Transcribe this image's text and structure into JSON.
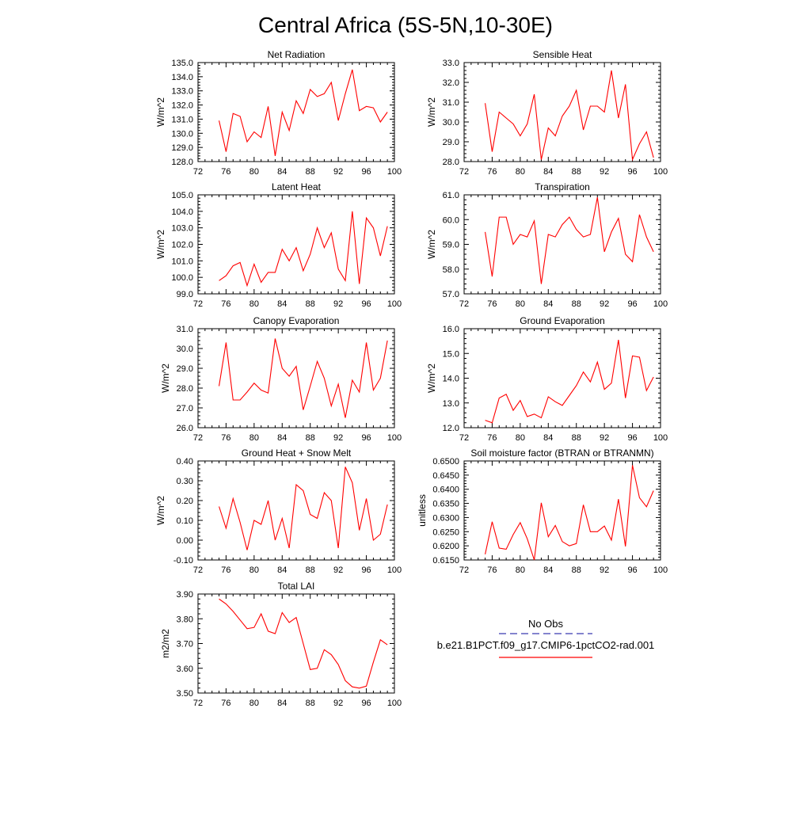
{
  "title": "Central Africa (5S-5N,10-30E)",
  "colors": {
    "series": "#ff0000",
    "obs": "#3b3bb0",
    "axis": "#000000"
  },
  "legend": {
    "items": [
      {
        "label": "No Obs",
        "style": "dashed",
        "color": "#3b3bb0"
      },
      {
        "label": "b.e21.B1PCT.f09_g17.CMIP6-1pctCO2-rad.001",
        "style": "solid",
        "color": "#ff0000"
      }
    ]
  },
  "chart_data": [
    {
      "type": "line",
      "title": "Net Radiation",
      "ylabel": "W/m^2",
      "xlim": [
        72,
        100
      ],
      "ylim": [
        128.0,
        135.0
      ],
      "decimals": 1,
      "xticks": [
        72,
        76,
        80,
        84,
        88,
        92,
        96,
        100
      ],
      "yticks": [
        128.0,
        129.0,
        130.0,
        131.0,
        132.0,
        133.0,
        134.0,
        135.0
      ],
      "series": [
        {
          "x": [
            75,
            76,
            77,
            78,
            79,
            80,
            81,
            82,
            83,
            84,
            85,
            86,
            87,
            88,
            89,
            90,
            91,
            92,
            93,
            94,
            95,
            96,
            97,
            98,
            99
          ],
          "y": [
            130.9,
            128.7,
            131.4,
            131.2,
            129.4,
            130.1,
            129.7,
            131.9,
            128.4,
            131.5,
            130.2,
            132.3,
            131.4,
            133.1,
            132.6,
            132.8,
            133.6,
            130.9,
            132.8,
            134.5,
            131.6,
            131.9,
            131.8,
            130.8,
            131.5
          ]
        }
      ]
    },
    {
      "type": "line",
      "title": "Sensible Heat",
      "ylabel": "W/m^2",
      "xlim": [
        72,
        100
      ],
      "ylim": [
        28.0,
        33.0
      ],
      "decimals": 1,
      "xticks": [
        72,
        76,
        80,
        84,
        88,
        92,
        96,
        100
      ],
      "yticks": [
        28.0,
        29.0,
        30.0,
        31.0,
        32.0,
        33.0
      ],
      "series": [
        {
          "x": [
            75,
            76,
            77,
            78,
            79,
            80,
            81,
            82,
            83,
            84,
            85,
            86,
            87,
            88,
            89,
            90,
            91,
            92,
            93,
            94,
            95,
            96,
            97,
            98,
            99
          ],
          "y": [
            30.95,
            28.5,
            30.5,
            30.2,
            29.9,
            29.3,
            29.9,
            31.4,
            28.1,
            29.7,
            29.3,
            30.3,
            30.8,
            31.6,
            29.6,
            30.8,
            30.8,
            30.5,
            32.6,
            30.2,
            31.9,
            28.1,
            28.9,
            29.5,
            28.2
          ]
        }
      ]
    },
    {
      "type": "line",
      "title": "Latent Heat",
      "ylabel": "W/m^2",
      "xlim": [
        72,
        100
      ],
      "ylim": [
        99.0,
        105.0
      ],
      "decimals": 1,
      "xticks": [
        72,
        76,
        80,
        84,
        88,
        92,
        96,
        100
      ],
      "yticks": [
        99.0,
        100.0,
        101.0,
        102.0,
        103.0,
        104.0,
        105.0
      ],
      "series": [
        {
          "x": [
            75,
            76,
            77,
            78,
            79,
            80,
            81,
            82,
            83,
            84,
            85,
            86,
            87,
            88,
            89,
            90,
            91,
            92,
            93,
            94,
            95,
            96,
            97,
            98,
            99
          ],
          "y": [
            99.8,
            100.1,
            100.7,
            100.9,
            99.5,
            100.8,
            99.7,
            100.3,
            100.3,
            101.7,
            101.0,
            101.8,
            100.4,
            101.4,
            103.0,
            101.8,
            102.7,
            100.5,
            99.8,
            104.0,
            99.6,
            103.6,
            103.0,
            101.3,
            103.1
          ]
        }
      ]
    },
    {
      "type": "line",
      "title": "Transpiration",
      "ylabel": "W/m^2",
      "xlim": [
        72,
        100
      ],
      "ylim": [
        57.0,
        61.0
      ],
      "decimals": 1,
      "xticks": [
        72,
        76,
        80,
        84,
        88,
        92,
        96,
        100
      ],
      "yticks": [
        57.0,
        58.0,
        59.0,
        60.0,
        61.0
      ],
      "series": [
        {
          "x": [
            75,
            76,
            77,
            78,
            79,
            80,
            81,
            82,
            83,
            84,
            85,
            86,
            87,
            88,
            89,
            90,
            91,
            92,
            93,
            94,
            95,
            96,
            97,
            98,
            99
          ],
          "y": [
            59.5,
            57.7,
            60.1,
            60.1,
            59.0,
            59.4,
            59.3,
            59.95,
            57.4,
            59.4,
            59.3,
            59.8,
            60.1,
            59.6,
            59.3,
            59.4,
            60.9,
            58.7,
            59.5,
            60.05,
            58.6,
            58.3,
            60.2,
            59.3,
            58.7
          ]
        }
      ]
    },
    {
      "type": "line",
      "title": "Canopy Evaporation",
      "ylabel": "W/m^2",
      "xlim": [
        72,
        100
      ],
      "ylim": [
        26.0,
        31.0
      ],
      "decimals": 1,
      "xticks": [
        72,
        76,
        80,
        84,
        88,
        92,
        96,
        100
      ],
      "yticks": [
        26.0,
        27.0,
        28.0,
        29.0,
        30.0,
        31.0
      ],
      "series": [
        {
          "x": [
            75,
            76,
            77,
            78,
            79,
            80,
            81,
            82,
            83,
            84,
            85,
            86,
            87,
            88,
            89,
            90,
            91,
            92,
            93,
            94,
            95,
            96,
            97,
            98,
            99
          ],
          "y": [
            28.1,
            30.3,
            27.4,
            27.4,
            27.8,
            28.25,
            27.9,
            27.75,
            30.5,
            29.0,
            28.6,
            29.1,
            26.9,
            28.1,
            29.35,
            28.5,
            27.1,
            28.2,
            26.5,
            28.4,
            27.8,
            30.3,
            27.9,
            28.5,
            30.4
          ]
        }
      ]
    },
    {
      "type": "line",
      "title": "Ground Evaporation",
      "ylabel": "W/m^2",
      "xlim": [
        72,
        100
      ],
      "ylim": [
        12.0,
        16.0
      ],
      "decimals": 1,
      "xticks": [
        72,
        76,
        80,
        84,
        88,
        92,
        96,
        100
      ],
      "yticks": [
        12.0,
        13.0,
        14.0,
        15.0,
        16.0
      ],
      "series": [
        {
          "x": [
            75,
            76,
            77,
            78,
            79,
            80,
            81,
            82,
            83,
            84,
            85,
            86,
            87,
            88,
            89,
            90,
            91,
            92,
            93,
            94,
            95,
            96,
            97,
            98,
            99
          ],
          "y": [
            12.3,
            12.2,
            13.2,
            13.35,
            12.7,
            13.1,
            12.45,
            12.55,
            12.4,
            13.25,
            13.05,
            12.9,
            13.3,
            13.7,
            14.25,
            13.85,
            14.65,
            13.55,
            13.8,
            15.55,
            13.2,
            14.9,
            14.85,
            13.5,
            14.05
          ]
        }
      ]
    },
    {
      "type": "line",
      "title": "Ground Heat + Snow Melt",
      "ylabel": "W/m^2",
      "xlim": [
        72,
        100
      ],
      "ylim": [
        -0.1,
        0.4
      ],
      "decimals": 2,
      "xticks": [
        72,
        76,
        80,
        84,
        88,
        92,
        96,
        100
      ],
      "yticks": [
        -0.1,
        0.0,
        0.1,
        0.2,
        0.3,
        0.4
      ],
      "series": [
        {
          "x": [
            75,
            76,
            77,
            78,
            79,
            80,
            81,
            82,
            83,
            84,
            85,
            86,
            87,
            88,
            89,
            90,
            91,
            92,
            93,
            94,
            95,
            96,
            97,
            98,
            99
          ],
          "y": [
            0.17,
            0.06,
            0.21,
            0.09,
            -0.05,
            0.1,
            0.08,
            0.2,
            0.0,
            0.11,
            -0.04,
            0.28,
            0.25,
            0.13,
            0.11,
            0.24,
            0.2,
            -0.04,
            0.37,
            0.29,
            0.05,
            0.21,
            0.0,
            0.03,
            0.18
          ]
        }
      ]
    },
    {
      "type": "line",
      "title": "Soil moisture factor (BTRAN or BTRANMN)",
      "ylabel": "unitless",
      "xlim": [
        72,
        100
      ],
      "ylim": [
        0.615,
        0.65
      ],
      "decimals": 4,
      "xticks": [
        72,
        76,
        80,
        84,
        88,
        92,
        96,
        100
      ],
      "yticks": [
        0.615,
        0.62,
        0.625,
        0.63,
        0.635,
        0.64,
        0.645,
        0.65
      ],
      "series": [
        {
          "x": [
            75,
            76,
            77,
            78,
            79,
            80,
            81,
            82,
            83,
            84,
            85,
            86,
            87,
            88,
            89,
            90,
            91,
            92,
            93,
            94,
            95,
            96,
            97,
            98,
            99
          ],
          "y": [
            0.617,
            0.6285,
            0.6192,
            0.6188,
            0.624,
            0.6282,
            0.6225,
            0.615,
            0.6352,
            0.6232,
            0.6272,
            0.6215,
            0.62,
            0.6208,
            0.6345,
            0.625,
            0.625,
            0.627,
            0.622,
            0.6365,
            0.6198,
            0.6485,
            0.637,
            0.6338,
            0.6395
          ]
        }
      ]
    },
    {
      "type": "line",
      "title": "Total LAI",
      "ylabel": "m2/m2",
      "xlim": [
        72,
        100
      ],
      "ylim": [
        3.5,
        3.9
      ],
      "decimals": 2,
      "xticks": [
        72,
        76,
        80,
        84,
        88,
        92,
        96,
        100
      ],
      "yticks": [
        3.5,
        3.6,
        3.7,
        3.8,
        3.9
      ],
      "series": [
        {
          "x": [
            75,
            76,
            77,
            78,
            79,
            80,
            81,
            82,
            83,
            84,
            85,
            86,
            87,
            88,
            89,
            90,
            91,
            92,
            93,
            94,
            95,
            96,
            97,
            98,
            99
          ],
          "y": [
            3.88,
            3.86,
            3.83,
            3.795,
            3.76,
            3.765,
            3.82,
            3.75,
            3.74,
            3.825,
            3.785,
            3.805,
            3.7,
            3.595,
            3.6,
            3.675,
            3.655,
            3.615,
            3.55,
            3.525,
            3.52,
            3.528,
            3.625,
            3.715,
            3.695
          ]
        }
      ]
    }
  ]
}
